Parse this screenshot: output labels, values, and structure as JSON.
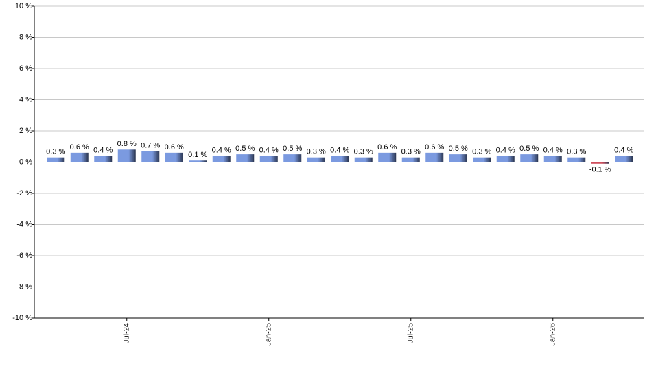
{
  "chart_data": {
    "type": "bar",
    "categories": [
      null,
      null,
      null,
      "Jul-24",
      null,
      null,
      null,
      null,
      null,
      "Jan-25",
      null,
      null,
      null,
      null,
      null,
      "Jul-25",
      null,
      null,
      null,
      null,
      null,
      "Jan-26",
      null,
      null,
      null
    ],
    "values": [
      0.3,
      0.6,
      0.4,
      0.8,
      0.7,
      0.6,
      0.1,
      0.4,
      0.5,
      0.4,
      0.5,
      0.3,
      0.4,
      0.3,
      0.6,
      0.3,
      0.6,
      0.5,
      0.3,
      0.4,
      0.5,
      0.4,
      0.3,
      -0.1,
      0.4
    ],
    "value_labels": [
      "0.3 %",
      "0.6 %",
      "0.4 %",
      "0.8 %",
      "0.7 %",
      "0.6 %",
      "0.1 %",
      "0.4 %",
      "0.5 %",
      "0.4 %",
      "0.5 %",
      "0.3 %",
      "0.4 %",
      "0.3 %",
      "0.6 %",
      "0.3 %",
      "0.6 %",
      "0.5 %",
      "0.3 %",
      "0.4 %",
      "0.5 %",
      "0.4 %",
      "0.3 %",
      "-0.1 %",
      "0.4 %"
    ],
    "color": "#7b9ae0",
    "negative_color": "#d0505e",
    "ylim": [
      -10,
      10
    ],
    "yticks": [
      {
        "value": -10,
        "label": "-10 %"
      },
      {
        "value": -8,
        "label": "-8 %"
      },
      {
        "value": -6,
        "label": "-6 %"
      },
      {
        "value": -4,
        "label": "-4 %"
      },
      {
        "value": -2,
        "label": "-2 %"
      },
      {
        "value": 0,
        "label": "0 %"
      },
      {
        "value": 2,
        "label": "2 %"
      },
      {
        "value": 4,
        "label": "4 %"
      },
      {
        "value": 6,
        "label": "6 %"
      },
      {
        "value": 8,
        "label": "8 %"
      },
      {
        "value": 10,
        "label": "10 %"
      }
    ],
    "grid": true
  }
}
